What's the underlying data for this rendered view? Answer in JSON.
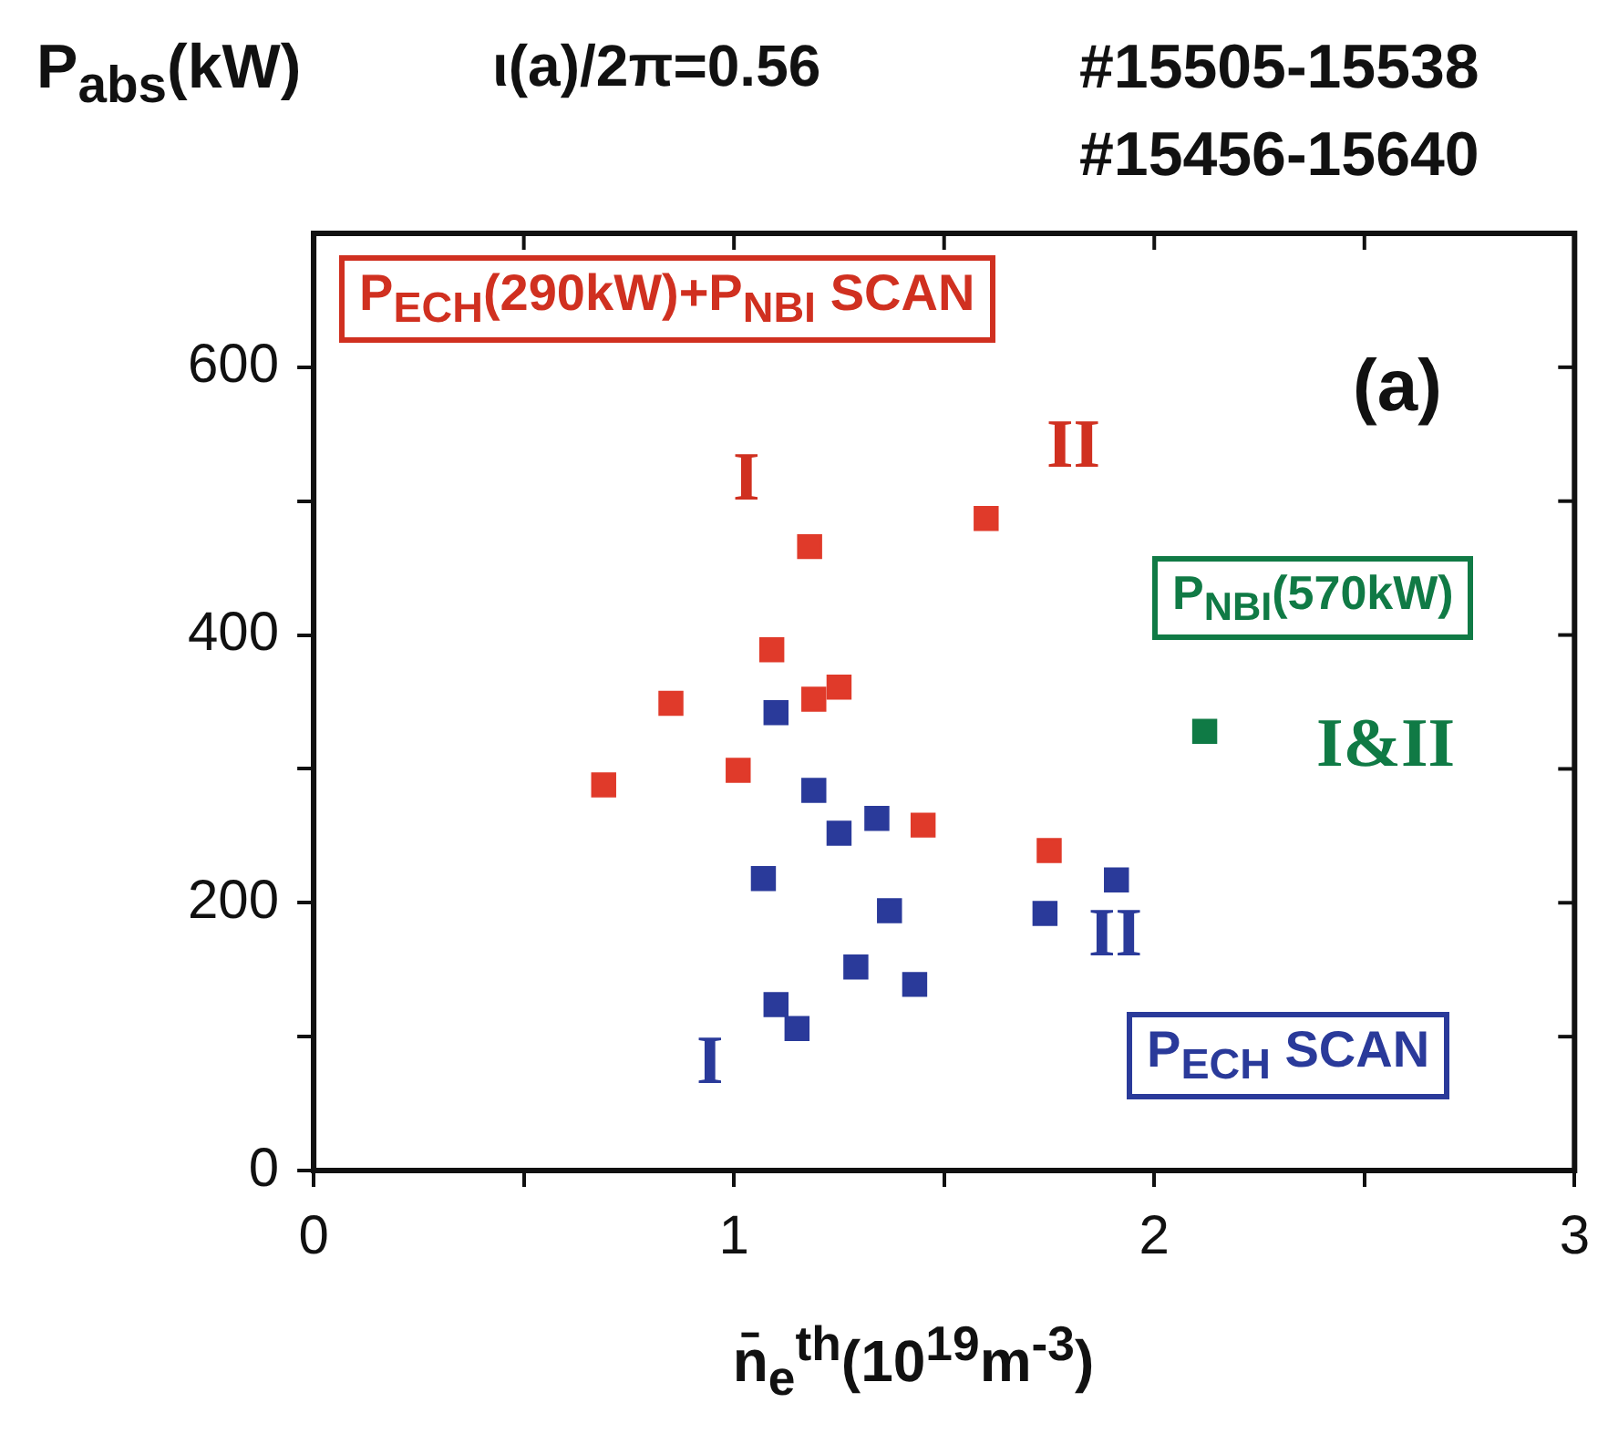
{
  "chart_data": {
    "type": "scatter",
    "title": "ι(a)/2π=0.56",
    "ylabel": "P$_{abs}$(kW)",
    "xlabel": "n̄$_{e}$$^{th}$(10$^{19}$m$^{-3}$)",
    "xlim": [
      0,
      3
    ],
    "ylim": [
      0,
      700
    ],
    "xticks": [
      0,
      {
        "value": 0.5,
        "label": null
      },
      1,
      {
        "value": 1.5,
        "label": null
      },
      2,
      {
        "value": 2.5,
        "label": null
      },
      3
    ],
    "yticks": [
      0,
      {
        "value": 100,
        "label": null
      },
      200,
      {
        "value": 300,
        "label": null
      },
      400,
      {
        "value": 500,
        "label": null
      },
      600
    ],
    "grid": false,
    "legend": false,
    "marker": "square",
    "series": [
      {
        "color": "#e03a2a",
        "x": [
          1.18,
          1.09,
          0.85,
          1.19,
          1.01,
          0.69
        ],
        "values": [
          466,
          389,
          349,
          352,
          299,
          288
        ]
      },
      {
        "color": "#e03a2a",
        "x": [
          1.25,
          1.45,
          1.6,
          1.75
        ],
        "values": [
          361,
          258,
          487,
          239
        ]
      },
      {
        "color": "#2a3a9a",
        "x": [
          1.1,
          1.19,
          1.25,
          1.07,
          1.29,
          1.1,
          1.15
        ],
        "values": [
          342,
          284,
          252,
          218,
          152,
          124,
          106
        ]
      },
      {
        "color": "#2a3a9a",
        "x": [
          1.34,
          1.37,
          1.43,
          1.74,
          1.91
        ],
        "values": [
          263,
          194,
          139,
          192,
          217
        ]
      },
      {
        "color": "#0f7a45",
        "x": [
          2.12
        ],
        "values": [
          328
        ]
      }
    ],
    "annotations": [
      "#15505-15538",
      "#15456-15640",
      "(a)",
      "P$_{ECH}$(290kW)+P$_{NBI}$ SCAN",
      "P$_{NBI}$(570kW)",
      "P$_{ECH}$ SCAN",
      "I",
      "II",
      "I&II",
      "II",
      "I"
    ]
  }
}
